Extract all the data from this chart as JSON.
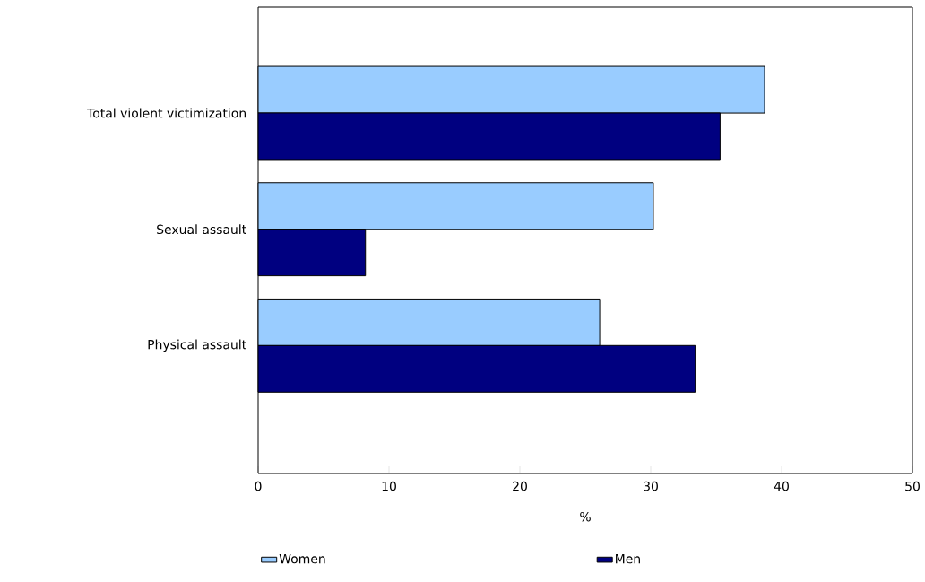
{
  "chart_data": {
    "type": "bar",
    "orientation": "horizontal",
    "xlabel": "%",
    "categories": [
      "Total violent victimization",
      "Sexual assault",
      "Physical assault"
    ],
    "series": [
      {
        "name": "Women",
        "color": "#99ccff",
        "values": [
          38.7,
          30.2,
          26.1
        ]
      },
      {
        "name": "Men",
        "color": "#000080",
        "values": [
          35.3,
          8.2,
          33.4
        ]
      }
    ],
    "xlim": [
      0,
      50
    ],
    "xticks": [
      0,
      10,
      20,
      30,
      40,
      50
    ],
    "grid": false,
    "legend": "bottom"
  }
}
